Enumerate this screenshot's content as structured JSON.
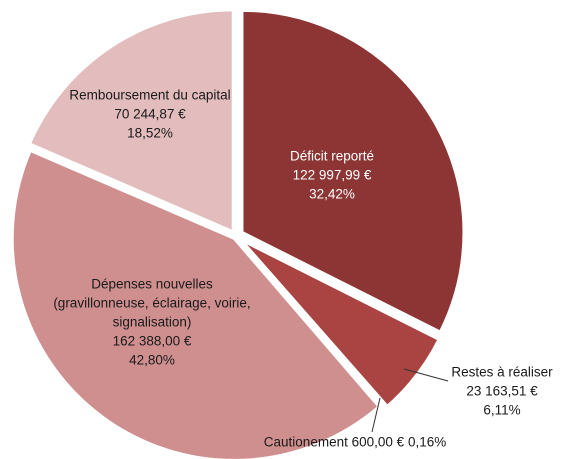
{
  "chart_data": {
    "type": "pie",
    "categories": [
      "Déficit reporté",
      "Restes à réaliser",
      "Cautionement",
      "Dépenses nouvelles (gravillonneuse, éclairage, voirie, signalisation)",
      "Remboursement du capital"
    ],
    "values": [
      122997.99,
      23163.51,
      600.0,
      162388.0,
      70244.87
    ],
    "value_labels": [
      "122 997,99 €",
      "23 163,51 €",
      "600,00 €",
      "162 388,00 €",
      "70 244,87 €"
    ],
    "percents": [
      32.42,
      6.11,
      0.16,
      42.8,
      18.52
    ],
    "percent_labels": [
      "32,42%",
      "6,11%",
      "0,16%",
      "42,80%",
      "18,52%"
    ],
    "colors": [
      "#8c3534",
      "#a94443",
      "#c46a69",
      "#d08f8f",
      "#e3bdbd"
    ]
  }
}
